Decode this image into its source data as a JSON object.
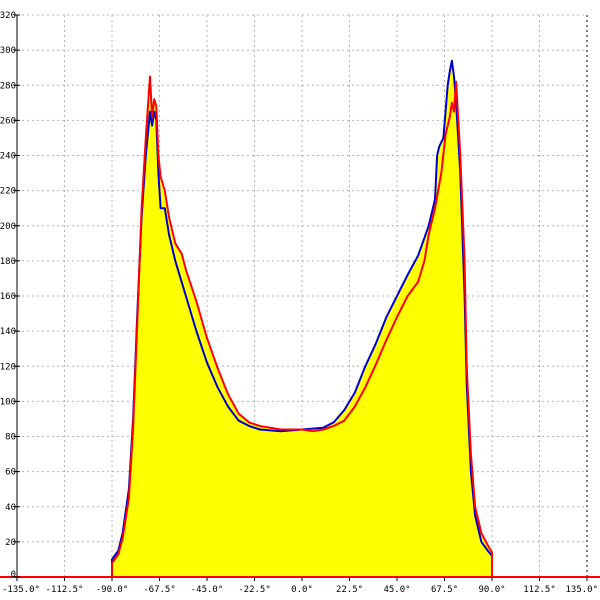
{
  "chart_data": {
    "type": "area",
    "title": "",
    "xlabel": "",
    "ylabel": "",
    "xlim": [
      -135,
      135
    ],
    "ylim": [
      0,
      320
    ],
    "grid": true,
    "x_ticks": [
      -135,
      -112.5,
      -90,
      -67.5,
      -45,
      -22.5,
      0,
      22.5,
      45,
      67.5,
      90,
      112.5,
      135
    ],
    "x_tick_labels": [
      "-135.0°",
      "-112.5°",
      "-90.0°",
      "-67.5°",
      "-45.0°",
      "-22.5°",
      "0.0°",
      "22.5°",
      "45.0°",
      "67.5°",
      "90.0°",
      "112.5°",
      "135.0°"
    ],
    "y_ticks": [
      0,
      20,
      40,
      60,
      80,
      100,
      120,
      140,
      160,
      180,
      200,
      220,
      240,
      260,
      280,
      300,
      320
    ],
    "y_tick_labels": [
      "0",
      "20",
      "40",
      "60",
      "80",
      "100",
      "120",
      "140",
      "160",
      "180",
      "200",
      "220",
      "240",
      "260",
      "280",
      "300",
      "320"
    ],
    "colors": {
      "fill": "#ffff00",
      "series_blue": "#0000cc",
      "series_red": "#ff0000",
      "baseline": "#ff0000",
      "grid": "#b4b4b4"
    },
    "series": [
      {
        "color": "#0000cc",
        "points": [
          [
            -135,
            0
          ],
          [
            -90,
            0
          ],
          [
            -90,
            10
          ],
          [
            -87,
            15
          ],
          [
            -85,
            25
          ],
          [
            -82,
            50
          ],
          [
            -80,
            90
          ],
          [
            -78,
            150
          ],
          [
            -76,
            205
          ],
          [
            -74,
            240
          ],
          [
            -72,
            265
          ],
          [
            -71,
            257
          ],
          [
            -70,
            265
          ],
          [
            -69,
            260
          ],
          [
            -68,
            230
          ],
          [
            -67,
            210
          ],
          [
            -65,
            210
          ],
          [
            -63,
            195
          ],
          [
            -60,
            180
          ],
          [
            -55,
            160
          ],
          [
            -50,
            140
          ],
          [
            -45,
            122
          ],
          [
            -40,
            108
          ],
          [
            -35,
            97
          ],
          [
            -30,
            89
          ],
          [
            -25,
            86
          ],
          [
            -20,
            84
          ],
          [
            -10,
            83
          ],
          [
            0,
            84
          ],
          [
            10,
            85
          ],
          [
            15,
            88
          ],
          [
            20,
            95
          ],
          [
            25,
            105
          ],
          [
            30,
            120
          ],
          [
            35,
            133
          ],
          [
            40,
            148
          ],
          [
            45,
            160
          ],
          [
            50,
            172
          ],
          [
            55,
            183
          ],
          [
            60,
            200
          ],
          [
            63,
            215
          ],
          [
            64,
            240
          ],
          [
            65,
            245
          ],
          [
            67,
            250
          ],
          [
            69,
            280
          ],
          [
            70,
            288
          ],
          [
            71,
            294
          ],
          [
            72,
            285
          ],
          [
            73,
            270
          ],
          [
            75,
            230
          ],
          [
            77,
            160
          ],
          [
            78,
            110
          ],
          [
            80,
            60
          ],
          [
            82,
            35
          ],
          [
            85,
            20
          ],
          [
            88,
            15
          ],
          [
            90,
            12
          ],
          [
            90,
            0
          ],
          [
            135,
            0
          ]
        ]
      },
      {
        "color": "#ff0000",
        "points": [
          [
            -135,
            0
          ],
          [
            -90,
            0
          ],
          [
            -90,
            8
          ],
          [
            -87,
            13
          ],
          [
            -85,
            22
          ],
          [
            -82,
            45
          ],
          [
            -80,
            85
          ],
          [
            -78,
            145
          ],
          [
            -76,
            210
          ],
          [
            -74,
            250
          ],
          [
            -72,
            285
          ],
          [
            -71,
            262
          ],
          [
            -70,
            272
          ],
          [
            -69,
            268
          ],
          [
            -68,
            240
          ],
          [
            -67,
            228
          ],
          [
            -65,
            220
          ],
          [
            -63,
            205
          ],
          [
            -60,
            190
          ],
          [
            -57,
            184
          ],
          [
            -55,
            175
          ],
          [
            -50,
            157
          ],
          [
            -45,
            136
          ],
          [
            -40,
            119
          ],
          [
            -35,
            104
          ],
          [
            -30,
            93
          ],
          [
            -25,
            88
          ],
          [
            -20,
            86
          ],
          [
            -10,
            84
          ],
          [
            0,
            84
          ],
          [
            5,
            83
          ],
          [
            10,
            84
          ],
          [
            15,
            86
          ],
          [
            20,
            89
          ],
          [
            25,
            97
          ],
          [
            30,
            108
          ],
          [
            35,
            121
          ],
          [
            40,
            135
          ],
          [
            45,
            148
          ],
          [
            50,
            160
          ],
          [
            55,
            168
          ],
          [
            58,
            180
          ],
          [
            60,
            195
          ],
          [
            63,
            210
          ],
          [
            66,
            230
          ],
          [
            68,
            252
          ],
          [
            70,
            262
          ],
          [
            71,
            270
          ],
          [
            72,
            265
          ],
          [
            73,
            282
          ],
          [
            75,
            240
          ],
          [
            77,
            180
          ],
          [
            78,
            120
          ],
          [
            80,
            70
          ],
          [
            82,
            40
          ],
          [
            85,
            25
          ],
          [
            88,
            18
          ],
          [
            90,
            14
          ],
          [
            90,
            0
          ],
          [
            135,
            0
          ]
        ]
      }
    ]
  }
}
